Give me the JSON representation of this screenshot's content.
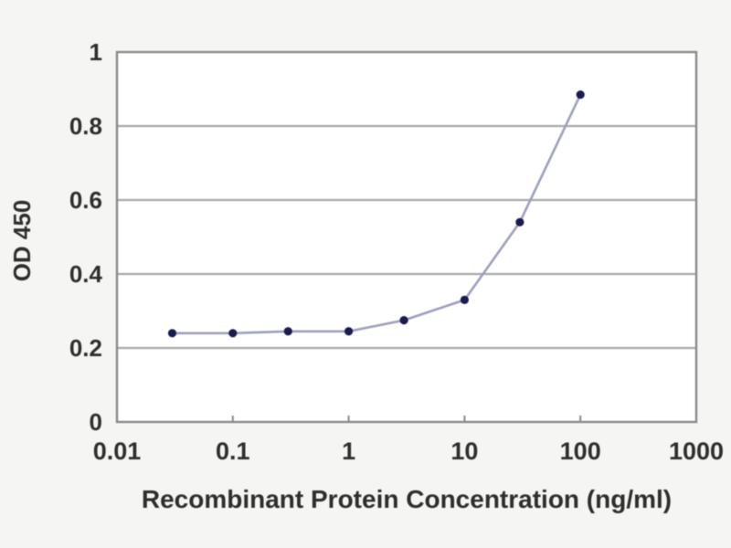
{
  "page": {
    "background": "#f5f5f3",
    "plot_background": "#ffffff"
  },
  "chart_data": {
    "type": "line",
    "x": [
      0.03,
      0.1,
      0.3,
      1,
      3,
      10,
      30,
      100
    ],
    "y": [
      0.24,
      0.24,
      0.245,
      0.245,
      0.275,
      0.33,
      0.54,
      0.885
    ],
    "title": "",
    "xlabel": "Recombinant Protein Concentration (ng/ml)",
    "ylabel": "OD 450",
    "x_scale": "log",
    "xlim": [
      0.01,
      1000
    ],
    "ylim": [
      0,
      1
    ],
    "x_tick_values": [
      0.01,
      0.1,
      1,
      10,
      100,
      1000
    ],
    "x_tick_labels": [
      "0.01",
      "0.1",
      "1",
      "10",
      "100",
      "1000"
    ],
    "y_tick_values": [
      0,
      0.2,
      0.4,
      0.6,
      0.8,
      1
    ],
    "y_tick_labels": [
      "0",
      "0.2",
      "0.4",
      "0.6",
      "0.8",
      "1"
    ],
    "grid": "horizontal",
    "legend": "none",
    "colors": {
      "line": "#9d9fc0",
      "marker": "#1b1b4f",
      "grid": "#a8a8a8",
      "axis": "#8a8a8a",
      "text": "#2e2e2e"
    }
  }
}
